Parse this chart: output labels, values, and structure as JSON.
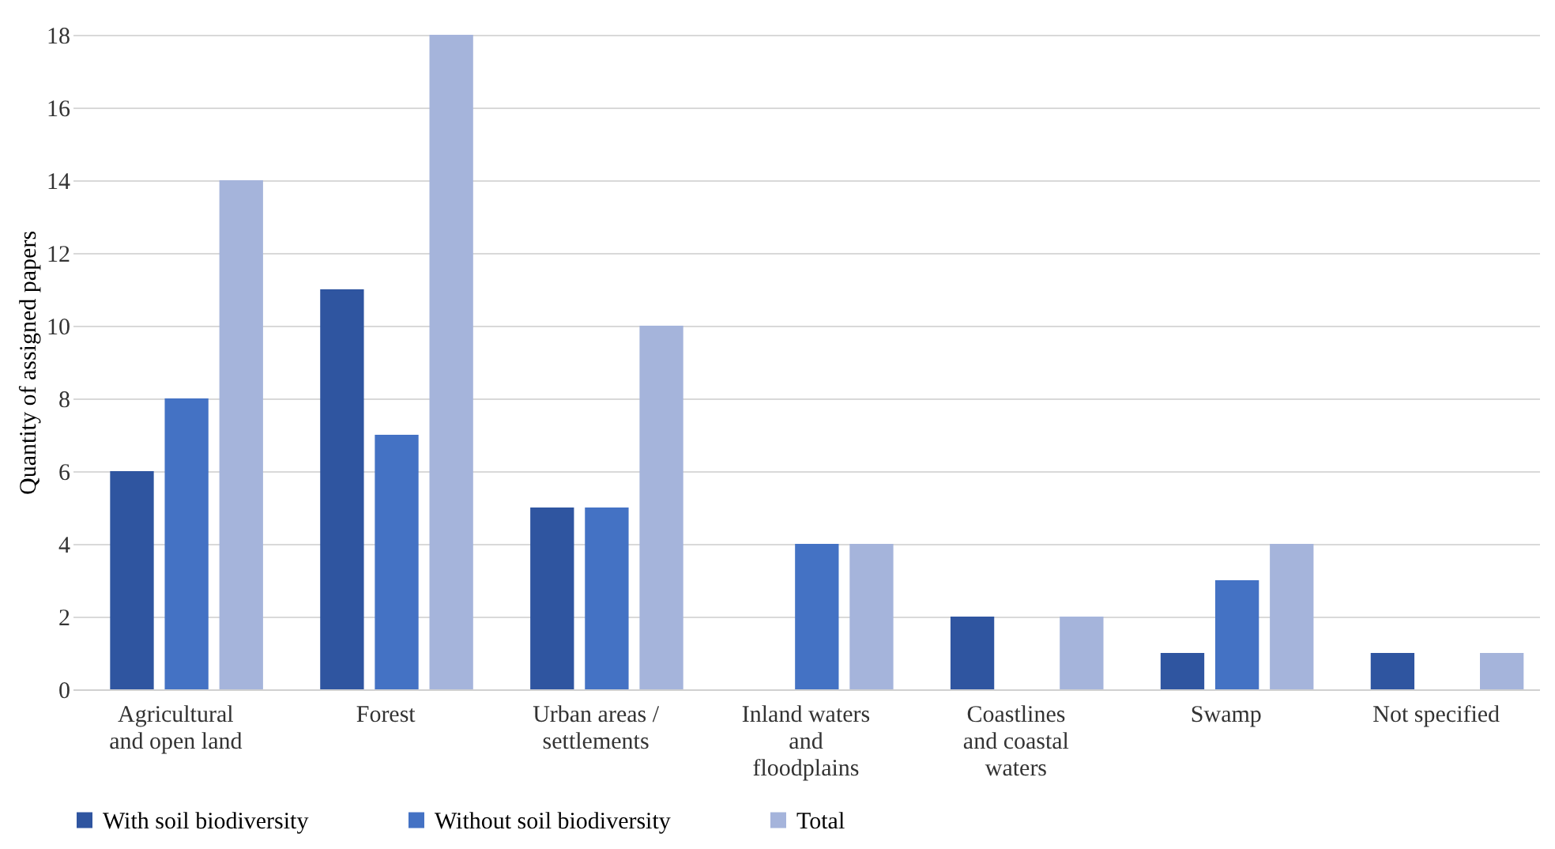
{
  "chart_data": {
    "type": "bar",
    "ylabel": "Quantity of assigned papers",
    "categories": [
      "Agricultural and open land",
      "Forest",
      "Urban areas / settlements",
      "Inland waters and floodplains",
      "Coastlines and coastal waters",
      "Swamp",
      "Not specified"
    ],
    "series": [
      {
        "name": "With soil biodiversity",
        "color": "#2f55a0",
        "values": [
          6,
          11,
          5,
          0,
          2,
          1,
          1
        ]
      },
      {
        "name": "Without soil biodiversity",
        "color": "#4472c4",
        "values": [
          8,
          7,
          5,
          4,
          0,
          3,
          0
        ]
      },
      {
        "name": "Total",
        "color": "#a5b4db",
        "values": [
          14,
          18,
          10,
          4,
          2,
          4,
          1
        ]
      }
    ],
    "ylim": [
      0,
      18
    ],
    "yticks": [
      0,
      2,
      4,
      6,
      8,
      10,
      12,
      14,
      16,
      18
    ],
    "grid": "y",
    "legend": "bottom"
  }
}
